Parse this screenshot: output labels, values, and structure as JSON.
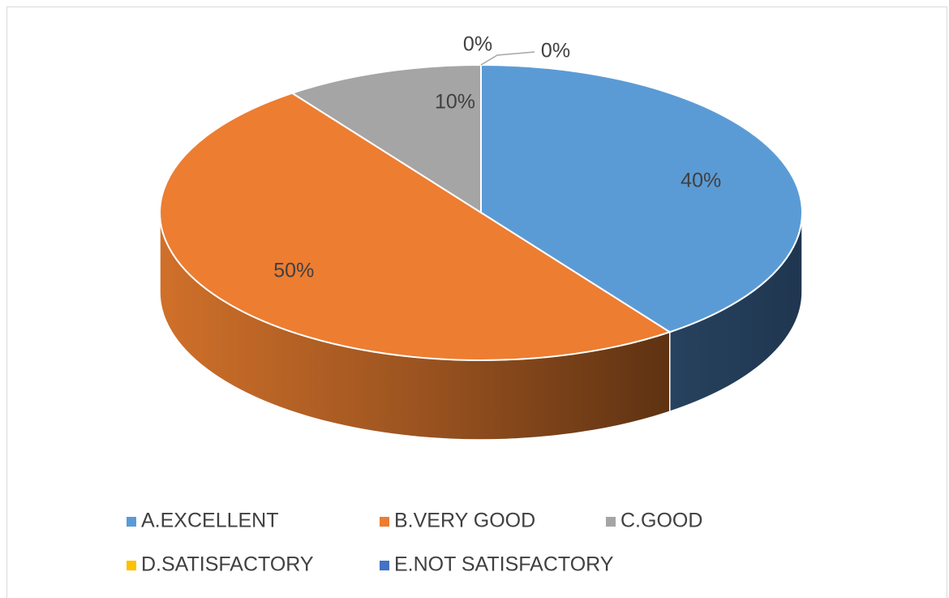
{
  "chart_data": {
    "type": "pie",
    "title": "",
    "categories": [
      "A.EXCELLENT",
      "B.VERY GOOD",
      "C.GOOD",
      "D.SATISFACTORY",
      "E.NOT SATISFACTORY"
    ],
    "values": [
      40,
      50,
      10,
      0,
      0
    ],
    "data_labels": [
      "40%",
      "50%",
      "10%",
      "0%",
      "0%"
    ],
    "colors": [
      "#5b9bd5",
      "#ed7d31",
      "#a5a5a5",
      "#ffc000",
      "#4472c4"
    ],
    "style": "3d",
    "legend_position": "bottom"
  }
}
